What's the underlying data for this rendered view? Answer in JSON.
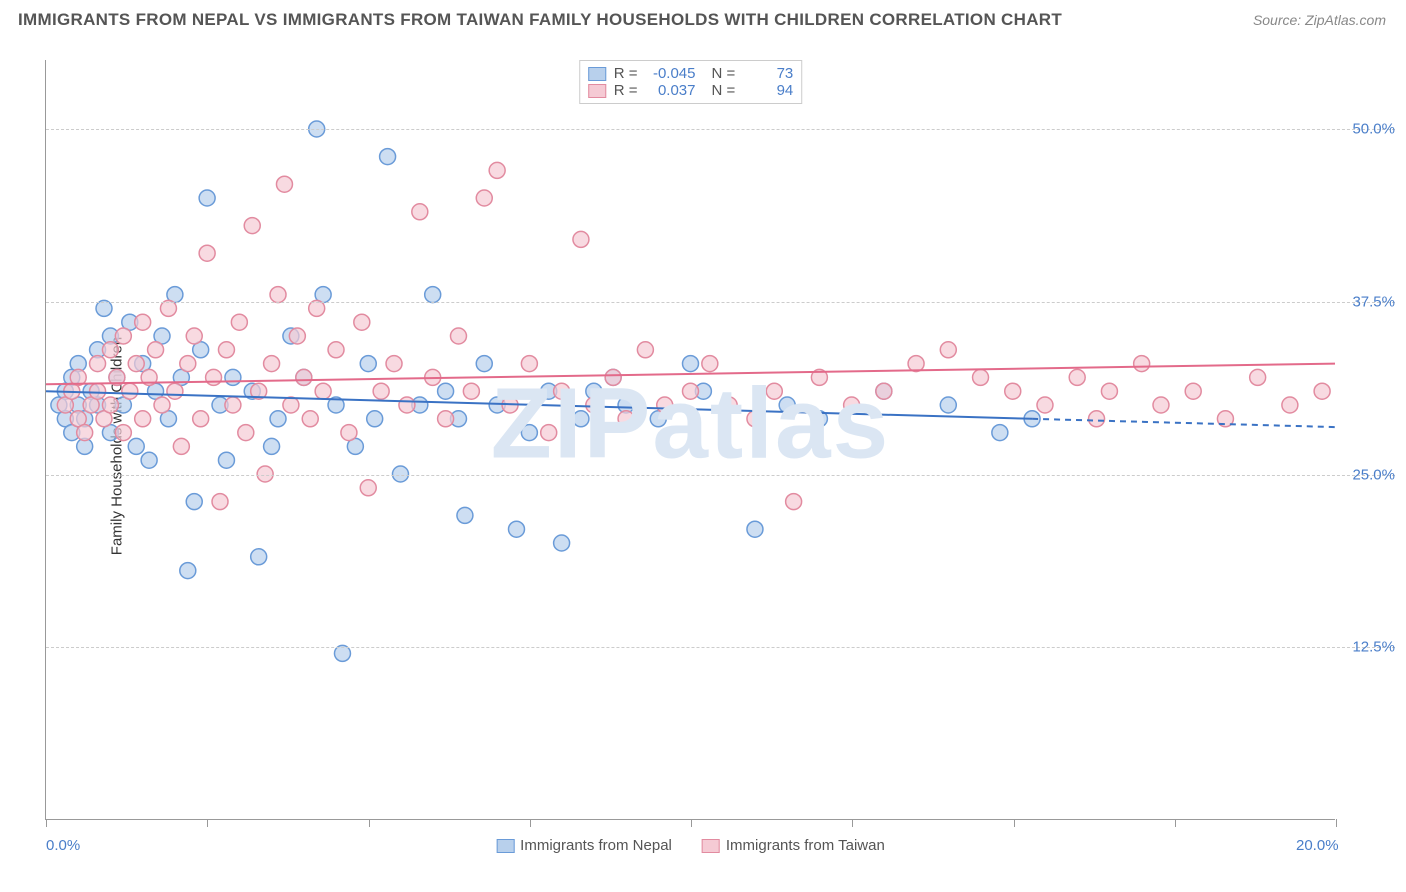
{
  "title": "IMMIGRANTS FROM NEPAL VS IMMIGRANTS FROM TAIWAN FAMILY HOUSEHOLDS WITH CHILDREN CORRELATION CHART",
  "source": "Source: ZipAtlas.com",
  "ylabel": "Family Households with Children",
  "watermark": "ZIPatlas",
  "chart": {
    "type": "scatter-with-regression",
    "xlim": [
      0,
      20
    ],
    "ylim": [
      0,
      55
    ],
    "xtick_positions": [
      0,
      2.5,
      5,
      7.5,
      10,
      12.5,
      15,
      17.5,
      20
    ],
    "xaxis_labels": [
      {
        "pos": 0,
        "text": "0.0%"
      },
      {
        "pos": 20,
        "text": "20.0%"
      }
    ],
    "ytick_positions": [
      12.5,
      25.0,
      37.5,
      50.0
    ],
    "ytick_labels": [
      "12.5%",
      "25.0%",
      "37.5%",
      "50.0%"
    ],
    "background_color": "#ffffff",
    "grid_color": "#cccccc",
    "axis_color": "#999999",
    "tick_label_color": "#4a7ec9",
    "marker_radius": 8,
    "marker_stroke_width": 1.5,
    "line_width": 2,
    "series": [
      {
        "name": "Immigrants from Nepal",
        "color_fill": "#b8d0ec",
        "color_stroke": "#6a9bd8",
        "line_color": "#3a72c4",
        "r": "-0.045",
        "n": "73",
        "regression": {
          "x1": 0,
          "y1": 31.0,
          "x2": 15.3,
          "y2": 29.0,
          "dash_x2": 20,
          "dash_y2": 28.4
        },
        "points": [
          [
            0.2,
            30
          ],
          [
            0.3,
            29
          ],
          [
            0.3,
            31
          ],
          [
            0.4,
            28
          ],
          [
            0.4,
            32
          ],
          [
            0.5,
            30
          ],
          [
            0.5,
            33
          ],
          [
            0.6,
            29
          ],
          [
            0.6,
            27
          ],
          [
            0.7,
            31
          ],
          [
            0.8,
            34
          ],
          [
            0.8,
            30
          ],
          [
            0.9,
            37
          ],
          [
            1.0,
            35
          ],
          [
            1.0,
            28
          ],
          [
            1.1,
            32
          ],
          [
            1.2,
            30
          ],
          [
            1.3,
            36
          ],
          [
            1.4,
            27
          ],
          [
            1.5,
            33
          ],
          [
            1.6,
            26
          ],
          [
            1.7,
            31
          ],
          [
            1.8,
            35
          ],
          [
            1.9,
            29
          ],
          [
            2.0,
            38
          ],
          [
            2.1,
            32
          ],
          [
            2.2,
            18
          ],
          [
            2.3,
            23
          ],
          [
            2.4,
            34
          ],
          [
            2.5,
            45
          ],
          [
            2.7,
            30
          ],
          [
            2.8,
            26
          ],
          [
            2.9,
            32
          ],
          [
            3.2,
            31
          ],
          [
            3.3,
            19
          ],
          [
            3.5,
            27
          ],
          [
            3.6,
            29
          ],
          [
            3.8,
            35
          ],
          [
            4.0,
            32
          ],
          [
            4.2,
            50
          ],
          [
            4.3,
            38
          ],
          [
            4.5,
            30
          ],
          [
            4.6,
            12
          ],
          [
            4.8,
            27
          ],
          [
            5.0,
            33
          ],
          [
            5.1,
            29
          ],
          [
            5.3,
            48
          ],
          [
            5.5,
            25
          ],
          [
            5.8,
            30
          ],
          [
            6.0,
            38
          ],
          [
            6.2,
            31
          ],
          [
            6.4,
            29
          ],
          [
            6.5,
            22
          ],
          [
            6.8,
            33
          ],
          [
            7.0,
            30
          ],
          [
            7.3,
            21
          ],
          [
            7.5,
            28
          ],
          [
            7.8,
            31
          ],
          [
            8.0,
            20
          ],
          [
            8.3,
            29
          ],
          [
            8.5,
            31
          ],
          [
            8.8,
            32
          ],
          [
            9.0,
            30
          ],
          [
            9.5,
            29
          ],
          [
            10.0,
            33
          ],
          [
            10.2,
            31
          ],
          [
            11.0,
            21
          ],
          [
            11.5,
            30
          ],
          [
            12.0,
            29
          ],
          [
            13.0,
            31
          ],
          [
            14.0,
            30
          ],
          [
            14.8,
            28
          ],
          [
            15.3,
            29
          ]
        ]
      },
      {
        "name": "Immigrants from Taiwan",
        "color_fill": "#f5cad4",
        "color_stroke": "#e28ba0",
        "line_color": "#e36a8a",
        "r": "0.037",
        "n": "94",
        "regression": {
          "x1": 0,
          "y1": 31.5,
          "x2": 20,
          "y2": 33.0
        },
        "points": [
          [
            0.3,
            30
          ],
          [
            0.4,
            31
          ],
          [
            0.5,
            29
          ],
          [
            0.5,
            32
          ],
          [
            0.6,
            28
          ],
          [
            0.7,
            30
          ],
          [
            0.8,
            33
          ],
          [
            0.8,
            31
          ],
          [
            0.9,
            29
          ],
          [
            1.0,
            34
          ],
          [
            1.0,
            30
          ],
          [
            1.1,
            32
          ],
          [
            1.2,
            35
          ],
          [
            1.2,
            28
          ],
          [
            1.3,
            31
          ],
          [
            1.4,
            33
          ],
          [
            1.5,
            36
          ],
          [
            1.5,
            29
          ],
          [
            1.6,
            32
          ],
          [
            1.7,
            34
          ],
          [
            1.8,
            30
          ],
          [
            1.9,
            37
          ],
          [
            2.0,
            31
          ],
          [
            2.1,
            27
          ],
          [
            2.2,
            33
          ],
          [
            2.3,
            35
          ],
          [
            2.4,
            29
          ],
          [
            2.5,
            41
          ],
          [
            2.6,
            32
          ],
          [
            2.7,
            23
          ],
          [
            2.8,
            34
          ],
          [
            2.9,
            30
          ],
          [
            3.0,
            36
          ],
          [
            3.1,
            28
          ],
          [
            3.2,
            43
          ],
          [
            3.3,
            31
          ],
          [
            3.4,
            25
          ],
          [
            3.5,
            33
          ],
          [
            3.6,
            38
          ],
          [
            3.7,
            46
          ],
          [
            3.8,
            30
          ],
          [
            3.9,
            35
          ],
          [
            4.0,
            32
          ],
          [
            4.1,
            29
          ],
          [
            4.2,
            37
          ],
          [
            4.3,
            31
          ],
          [
            4.5,
            34
          ],
          [
            4.7,
            28
          ],
          [
            4.9,
            36
          ],
          [
            5.0,
            24
          ],
          [
            5.2,
            31
          ],
          [
            5.4,
            33
          ],
          [
            5.6,
            30
          ],
          [
            5.8,
            44
          ],
          [
            6.0,
            32
          ],
          [
            6.2,
            29
          ],
          [
            6.4,
            35
          ],
          [
            6.6,
            31
          ],
          [
            6.8,
            45
          ],
          [
            7.0,
            47
          ],
          [
            7.2,
            30
          ],
          [
            7.5,
            33
          ],
          [
            7.8,
            28
          ],
          [
            8.0,
            31
          ],
          [
            8.3,
            42
          ],
          [
            8.5,
            30
          ],
          [
            8.8,
            32
          ],
          [
            9.0,
            29
          ],
          [
            9.3,
            34
          ],
          [
            9.6,
            30
          ],
          [
            10.0,
            31
          ],
          [
            10.3,
            33
          ],
          [
            10.6,
            30
          ],
          [
            11.0,
            29
          ],
          [
            11.3,
            31
          ],
          [
            11.6,
            23
          ],
          [
            12.0,
            32
          ],
          [
            12.5,
            30
          ],
          [
            13.0,
            31
          ],
          [
            13.5,
            33
          ],
          [
            14.0,
            34
          ],
          [
            14.5,
            32
          ],
          [
            15.0,
            31
          ],
          [
            15.5,
            30
          ],
          [
            16.0,
            32
          ],
          [
            16.3,
            29
          ],
          [
            16.5,
            31
          ],
          [
            17.0,
            33
          ],
          [
            17.3,
            30
          ],
          [
            17.8,
            31
          ],
          [
            18.3,
            29
          ],
          [
            18.8,
            32
          ],
          [
            19.3,
            30
          ],
          [
            19.8,
            31
          ]
        ]
      }
    ]
  }
}
